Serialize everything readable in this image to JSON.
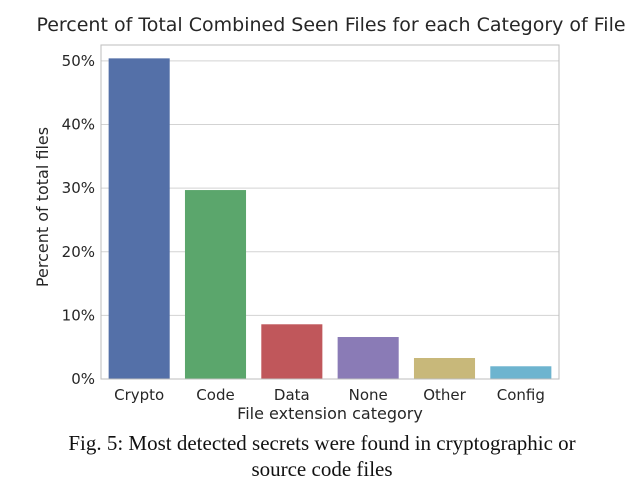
{
  "chart_data": {
    "type": "bar",
    "title": "Percent of Total Combined Seen Files for each Category of File",
    "xlabel": "File extension category",
    "ylabel": "Percent of total files",
    "categories": [
      "Crypto",
      "Code",
      "Data",
      "None",
      "Other",
      "Config"
    ],
    "values": [
      50.4,
      29.7,
      8.6,
      6.6,
      3.3,
      2.0
    ],
    "colors": [
      "#5470a8",
      "#5ba66c",
      "#c0575b",
      "#8a7bb6",
      "#c8b87a",
      "#6db4cf"
    ],
    "ylim": [
      0,
      52.5
    ],
    "yticks": [
      0,
      10,
      20,
      30,
      40,
      50
    ],
    "ytick_labels": [
      "0%",
      "10%",
      "20%",
      "30%",
      "40%",
      "50%"
    ],
    "grid": true,
    "legend": false
  },
  "caption": {
    "line1": "Fig. 5: Most detected secrets were found in cryptographic or",
    "line2": "source code files"
  }
}
